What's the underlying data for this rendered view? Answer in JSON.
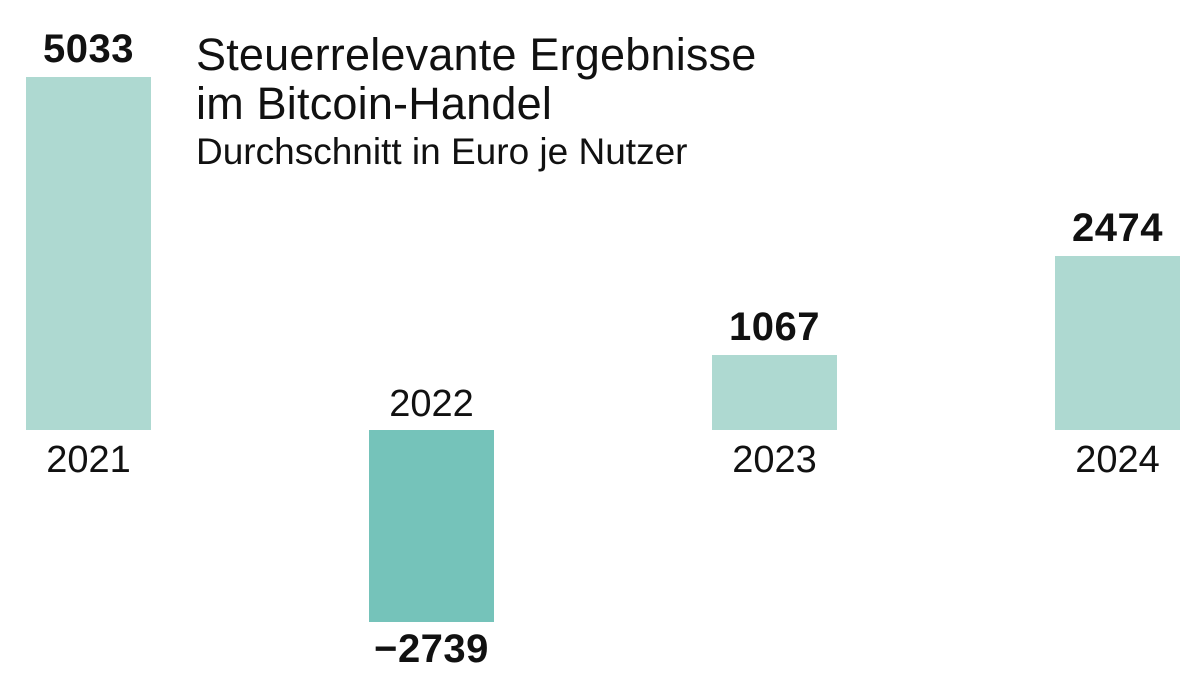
{
  "header": {
    "title_line1": "Steuerrelevante Ergebnisse",
    "title_line2": "im Bitcoin-Handel",
    "subtitle": "Durchschnitt in Euro je Nutzer"
  },
  "chart_data": {
    "type": "bar",
    "title": "Steuerrelevante Ergebnisse im Bitcoin-Handel",
    "subtitle": "Durchschnitt in Euro je Nutzer",
    "unit": "Euro je Nutzer",
    "categories": [
      "2021",
      "2022",
      "2023",
      "2024"
    ],
    "values": [
      5033,
      -2739,
      1067,
      2474
    ],
    "value_labels": [
      "5033",
      "−2739",
      "1067",
      "2474"
    ],
    "baseline_value": 0,
    "ylim": [
      -2739,
      5033
    ],
    "axis": "none",
    "grid": false,
    "legend": false,
    "colors": {
      "bar_positive": "#aed9d1",
      "bar_negative": "#75c3ba",
      "text": "#111111",
      "background": "#ffffff"
    }
  }
}
